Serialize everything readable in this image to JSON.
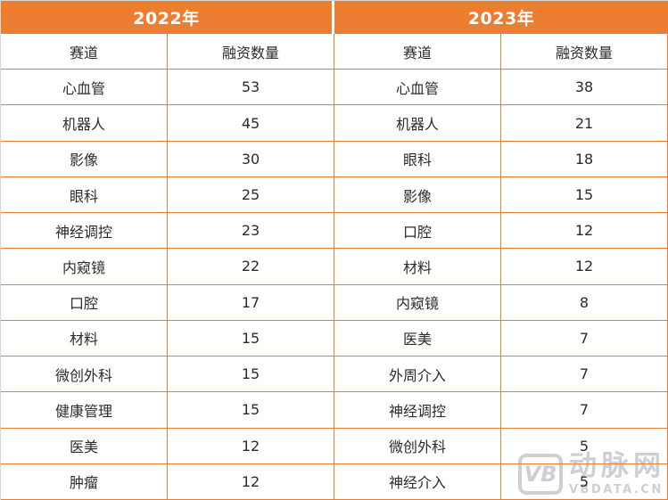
{
  "chart_data": [
    {
      "type": "table",
      "title": "2022年",
      "columns": [
        "赛道",
        "融资数量"
      ],
      "rows": [
        [
          "心血管",
          53
        ],
        [
          "机器人",
          45
        ],
        [
          "影像",
          30
        ],
        [
          "眼科",
          25
        ],
        [
          "神经调控",
          23
        ],
        [
          "内窥镜",
          22
        ],
        [
          "口腔",
          17
        ],
        [
          "材料",
          15
        ],
        [
          "微创外科",
          15
        ],
        [
          "健康管理",
          15
        ],
        [
          "医美",
          12
        ],
        [
          "肿瘤",
          12
        ]
      ]
    },
    {
      "type": "table",
      "title": "2023年",
      "columns": [
        "赛道",
        "融资数量"
      ],
      "rows": [
        [
          "心血管",
          38
        ],
        [
          "机器人",
          21
        ],
        [
          "眼科",
          18
        ],
        [
          "影像",
          15
        ],
        [
          "口腔",
          12
        ],
        [
          "材料",
          12
        ],
        [
          "内窥镜",
          8
        ],
        [
          "医美",
          7
        ],
        [
          "外周介入",
          7
        ],
        [
          "神经调控",
          7
        ],
        [
          "微创外科",
          5
        ],
        [
          "神经介入",
          5
        ]
      ]
    }
  ],
  "colors": {
    "accent": "#ED7D31",
    "grid_border": "#ED7D31",
    "outer_border": "#D8D8D8",
    "header_text": "#FFFFFF",
    "body_text": "#2B2B2B",
    "watermark": "#CDD0D3"
  },
  "watermark": {
    "logo": "VB",
    "brand": "动脉网",
    "domain": "VBDATA.CN"
  }
}
